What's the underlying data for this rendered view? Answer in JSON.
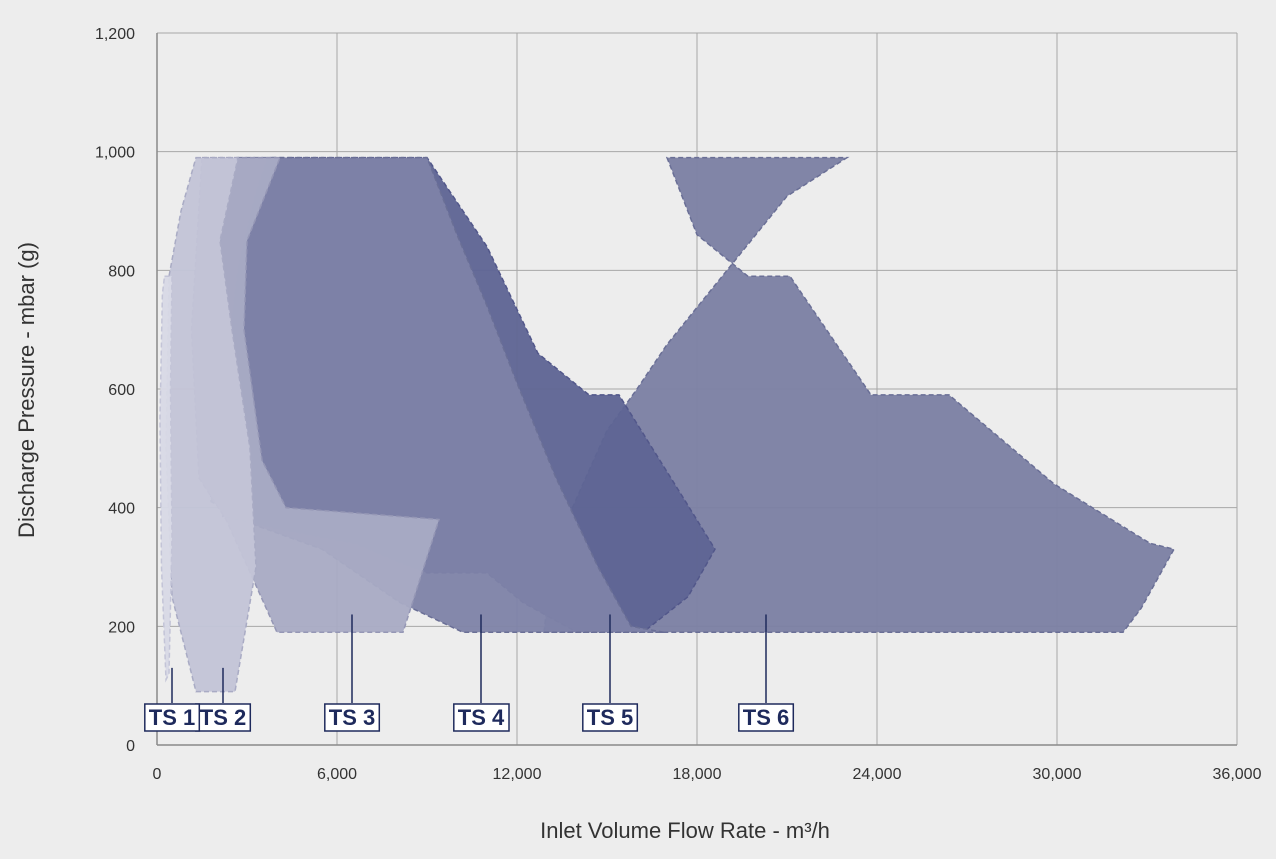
{
  "chart_data": {
    "type": "area",
    "title": "",
    "xlabel": "Inlet Volume Flow Rate - m³/h",
    "ylabel": "Discharge Pressure - mbar (g)",
    "xlim": [
      0,
      36000
    ],
    "ylim": [
      0,
      1200
    ],
    "x_ticks": [
      0,
      6000,
      12000,
      18000,
      24000,
      30000,
      36000
    ],
    "x_tick_labels": [
      "0",
      "6,000",
      "12,000",
      "18,000",
      "24,000",
      "30,000",
      "36,000"
    ],
    "y_ticks": [
      0,
      200,
      400,
      600,
      800,
      1000,
      1200
    ],
    "y_tick_labels": [
      "0",
      "200",
      "400",
      "600",
      "800",
      "1,000",
      "1,200"
    ],
    "grid": true,
    "legend": "none",
    "series": [
      {
        "name": "TS 6",
        "color": "#7b80a3",
        "stroke": "#6a6f96",
        "label_at": [
          20300,
          220
        ],
        "points": [
          [
            12900,
            190
          ],
          [
            13100,
            280
          ],
          [
            13500,
            360
          ],
          [
            14200,
            440
          ],
          [
            15000,
            530
          ],
          [
            16000,
            600
          ],
          [
            17000,
            675
          ],
          [
            19000,
            800
          ],
          [
            21000,
            925
          ],
          [
            23000,
            990
          ],
          [
            17000,
            990
          ],
          [
            18000,
            860
          ],
          [
            19700,
            790
          ],
          [
            21100,
            790
          ],
          [
            23800,
            590
          ],
          [
            26400,
            590
          ],
          [
            29900,
            440
          ],
          [
            33100,
            340
          ],
          [
            33900,
            330
          ],
          [
            32800,
            230
          ],
          [
            32200,
            190
          ]
        ]
      },
      {
        "name": "TS 5",
        "color": "#5e6494",
        "stroke": "#52578a",
        "label_at": [
          15100,
          220
        ],
        "points": [
          [
            4400,
            990
          ],
          [
            5500,
            990
          ],
          [
            9000,
            990
          ],
          [
            11000,
            840
          ],
          [
            12700,
            660
          ],
          [
            14400,
            590
          ],
          [
            15400,
            590
          ],
          [
            17500,
            420
          ],
          [
            18600,
            330
          ],
          [
            17700,
            250
          ],
          [
            16200,
            190
          ],
          [
            14000,
            190
          ],
          [
            12200,
            240
          ],
          [
            11000,
            290
          ],
          [
            9000,
            290
          ],
          [
            8000,
            310
          ],
          [
            6600,
            340
          ],
          [
            4000,
            365
          ],
          [
            2200,
            385
          ],
          [
            2000,
            500
          ],
          [
            2700,
            800
          ],
          [
            3300,
            930
          ],
          [
            3700,
            990
          ]
        ]
      },
      {
        "name": "TS 4",
        "color": "#7e83a8",
        "stroke": "#6a6f96",
        "label_at": [
          10800,
          220
        ],
        "points": [
          [
            3800,
            990
          ],
          [
            9000,
            990
          ],
          [
            10000,
            860
          ],
          [
            11000,
            740
          ],
          [
            12000,
            610
          ],
          [
            13300,
            450
          ],
          [
            14700,
            300
          ],
          [
            15800,
            200
          ],
          [
            16900,
            190
          ],
          [
            10200,
            190
          ],
          [
            8100,
            240
          ],
          [
            5500,
            330
          ],
          [
            3300,
            370
          ],
          [
            2600,
            390
          ],
          [
            1800,
            410
          ],
          [
            1700,
            600
          ],
          [
            2200,
            900
          ],
          [
            2600,
            990
          ]
        ]
      },
      {
        "name": "TS 3",
        "color": "#a9abc4",
        "stroke": "#9597b5",
        "label_at": [
          6500,
          220
        ],
        "points": [
          [
            1500,
            990
          ],
          [
            4100,
            990
          ],
          [
            3000,
            850
          ],
          [
            2900,
            700
          ],
          [
            3500,
            480
          ],
          [
            4300,
            400
          ],
          [
            9400,
            380
          ],
          [
            8200,
            190
          ],
          [
            4000,
            190
          ],
          [
            3200,
            280
          ],
          [
            2300,
            380
          ],
          [
            1400,
            450
          ],
          [
            1150,
            700
          ],
          [
            1500,
            990
          ]
        ]
      },
      {
        "name": "TS 2",
        "color": "#c3c4d7",
        "stroke": "#a9abc4",
        "label_at": [
          2200,
          130
        ],
        "points": [
          [
            1300,
            990
          ],
          [
            2700,
            990
          ],
          [
            2100,
            850
          ],
          [
            2500,
            700
          ],
          [
            3100,
            500
          ],
          [
            3300,
            300
          ],
          [
            2600,
            90
          ],
          [
            1300,
            90
          ],
          [
            500,
            250
          ],
          [
            300,
            500
          ],
          [
            400,
            790
          ],
          [
            800,
            900
          ]
        ]
      },
      {
        "name": "TS 1",
        "color": "#d8d9e6",
        "stroke": "#c3c4d7",
        "label_at": [
          500,
          130
        ],
        "points": [
          [
            250,
            790
          ],
          [
            500,
            790
          ],
          [
            450,
            600
          ],
          [
            500,
            350
          ],
          [
            400,
            120
          ],
          [
            300,
            110
          ],
          [
            150,
            300
          ],
          [
            100,
            550
          ],
          [
            180,
            760
          ]
        ]
      }
    ]
  }
}
